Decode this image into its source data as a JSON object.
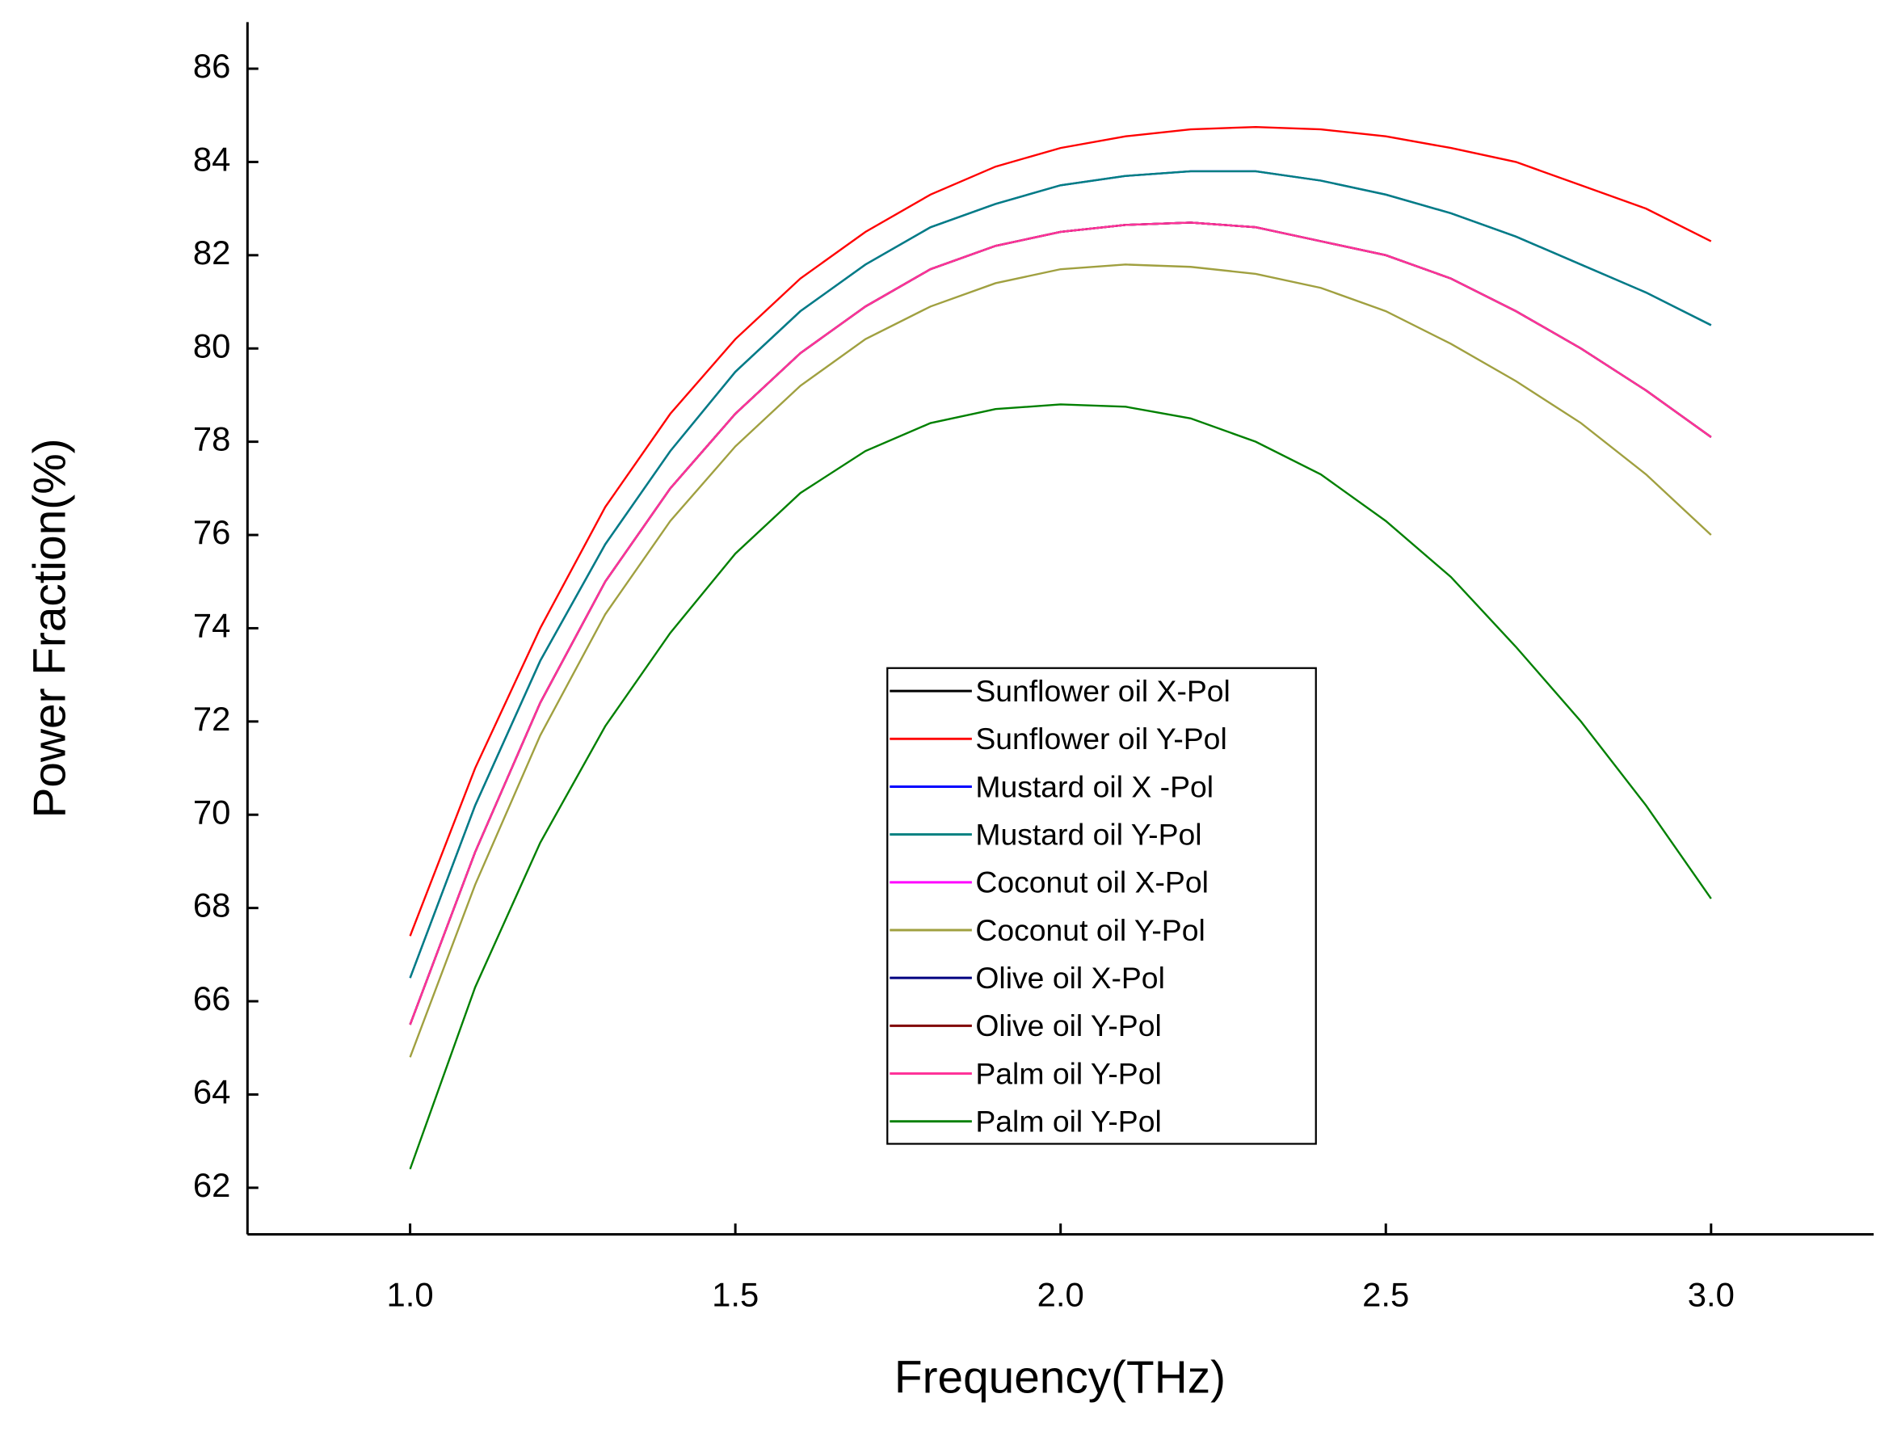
{
  "chart_data": {
    "type": "line",
    "x_label": "Frequency(THz)",
    "y_label": "Power Fraction(%)",
    "xlim": [
      0.75,
      3.25
    ],
    "ylim": [
      61,
      87
    ],
    "xticks": [
      {
        "value": 1,
        "label": "1.0"
      },
      1.5,
      {
        "value": 2,
        "label": "2.0"
      },
      2.5,
      {
        "value": 3,
        "label": "3.0"
      }
    ],
    "yticks": [
      62,
      64,
      66,
      68,
      70,
      72,
      74,
      76,
      78,
      80,
      82,
      84,
      86
    ],
    "x": [
      1.0,
      1.1,
      1.2,
      1.3,
      1.4,
      1.5,
      1.6,
      1.7,
      1.8,
      1.9,
      2.0,
      2.1,
      2.2,
      2.3,
      2.4,
      2.5,
      2.6,
      2.7,
      2.8,
      2.9,
      3.0
    ],
    "series": [
      {
        "name": "Sunflower oil X-Pol",
        "color": "#000000",
        "values": [
          65.5,
          69.2,
          72.4,
          75.0,
          77.0,
          78.6,
          79.9,
          80.9,
          81.7,
          82.2,
          82.5,
          82.65,
          82.7,
          82.6,
          82.3,
          82.0,
          81.5,
          80.8,
          80.0,
          79.1,
          78.1
        ]
      },
      {
        "name": "Sunflower oil Y-Pol",
        "color": "#ff0000",
        "values": [
          67.4,
          71.0,
          74.0,
          76.6,
          78.6,
          80.2,
          81.5,
          82.5,
          83.3,
          83.9,
          84.3,
          84.55,
          84.7,
          84.75,
          84.7,
          84.55,
          84.3,
          84.0,
          83.5,
          83.0,
          82.3
        ]
      },
      {
        "name": "Mustard oil X -Pol",
        "color": "#0000ff",
        "values": [
          66.5,
          70.2,
          73.3,
          75.8,
          77.8,
          79.5,
          80.8,
          81.8,
          82.6,
          83.1,
          83.5,
          83.7,
          83.8,
          83.8,
          83.6,
          83.3,
          82.9,
          82.4,
          81.8,
          81.2,
          80.5
        ]
      },
      {
        "name": "Mustard oil Y-Pol",
        "color": "#008080",
        "values": [
          66.5,
          70.2,
          73.3,
          75.8,
          77.8,
          79.5,
          80.8,
          81.8,
          82.6,
          83.1,
          83.5,
          83.7,
          83.8,
          83.8,
          83.6,
          83.3,
          82.9,
          82.4,
          81.8,
          81.2,
          80.5
        ]
      },
      {
        "name": "Coconut oil X-Pol",
        "color": "#ff00ff",
        "values": [
          65.5,
          69.2,
          72.4,
          75.0,
          77.0,
          78.6,
          79.9,
          80.9,
          81.7,
          82.2,
          82.5,
          82.65,
          82.7,
          82.6,
          82.3,
          82.0,
          81.5,
          80.8,
          80.0,
          79.1,
          78.1
        ]
      },
      {
        "name": "Coconut oil Y-Pol",
        "color": "#a0a040",
        "values": [
          64.8,
          68.5,
          71.7,
          74.3,
          76.3,
          77.9,
          79.2,
          80.2,
          80.9,
          81.4,
          81.7,
          81.8,
          81.75,
          81.6,
          81.3,
          80.8,
          80.1,
          79.3,
          78.4,
          77.3,
          76.0
        ]
      },
      {
        "name": "Olive oil X-Pol",
        "color": "#000080",
        "values": [
          65.5,
          69.2,
          72.4,
          75.0,
          77.0,
          78.6,
          79.9,
          80.9,
          81.7,
          82.2,
          82.5,
          82.65,
          82.7,
          82.6,
          82.3,
          82.0,
          81.5,
          80.8,
          80.0,
          79.1,
          78.1
        ]
      },
      {
        "name": "Olive oil Y-Pol",
        "color": "#800000",
        "values": [
          65.5,
          69.2,
          72.4,
          75.0,
          77.0,
          78.6,
          79.9,
          80.9,
          81.7,
          82.2,
          82.5,
          82.65,
          82.7,
          82.6,
          82.3,
          82.0,
          81.5,
          80.8,
          80.0,
          79.1,
          78.1
        ]
      },
      {
        "name": "Palm oil Y-Pol",
        "color": "#ff3399",
        "values": [
          65.5,
          69.2,
          72.4,
          75.0,
          77.0,
          78.6,
          79.9,
          80.9,
          81.7,
          82.2,
          82.5,
          82.65,
          82.7,
          82.6,
          82.3,
          82.0,
          81.5,
          80.8,
          80.0,
          79.1,
          78.1
        ]
      },
      {
        "name": "Palm oil Y-Pol",
        "color": "#008000",
        "values": [
          62.4,
          66.3,
          69.4,
          71.9,
          73.9,
          75.6,
          76.9,
          77.8,
          78.4,
          78.7,
          78.8,
          78.75,
          78.5,
          78.0,
          77.3,
          76.3,
          75.1,
          73.6,
          72.0,
          70.2,
          68.2
        ]
      }
    ]
  }
}
